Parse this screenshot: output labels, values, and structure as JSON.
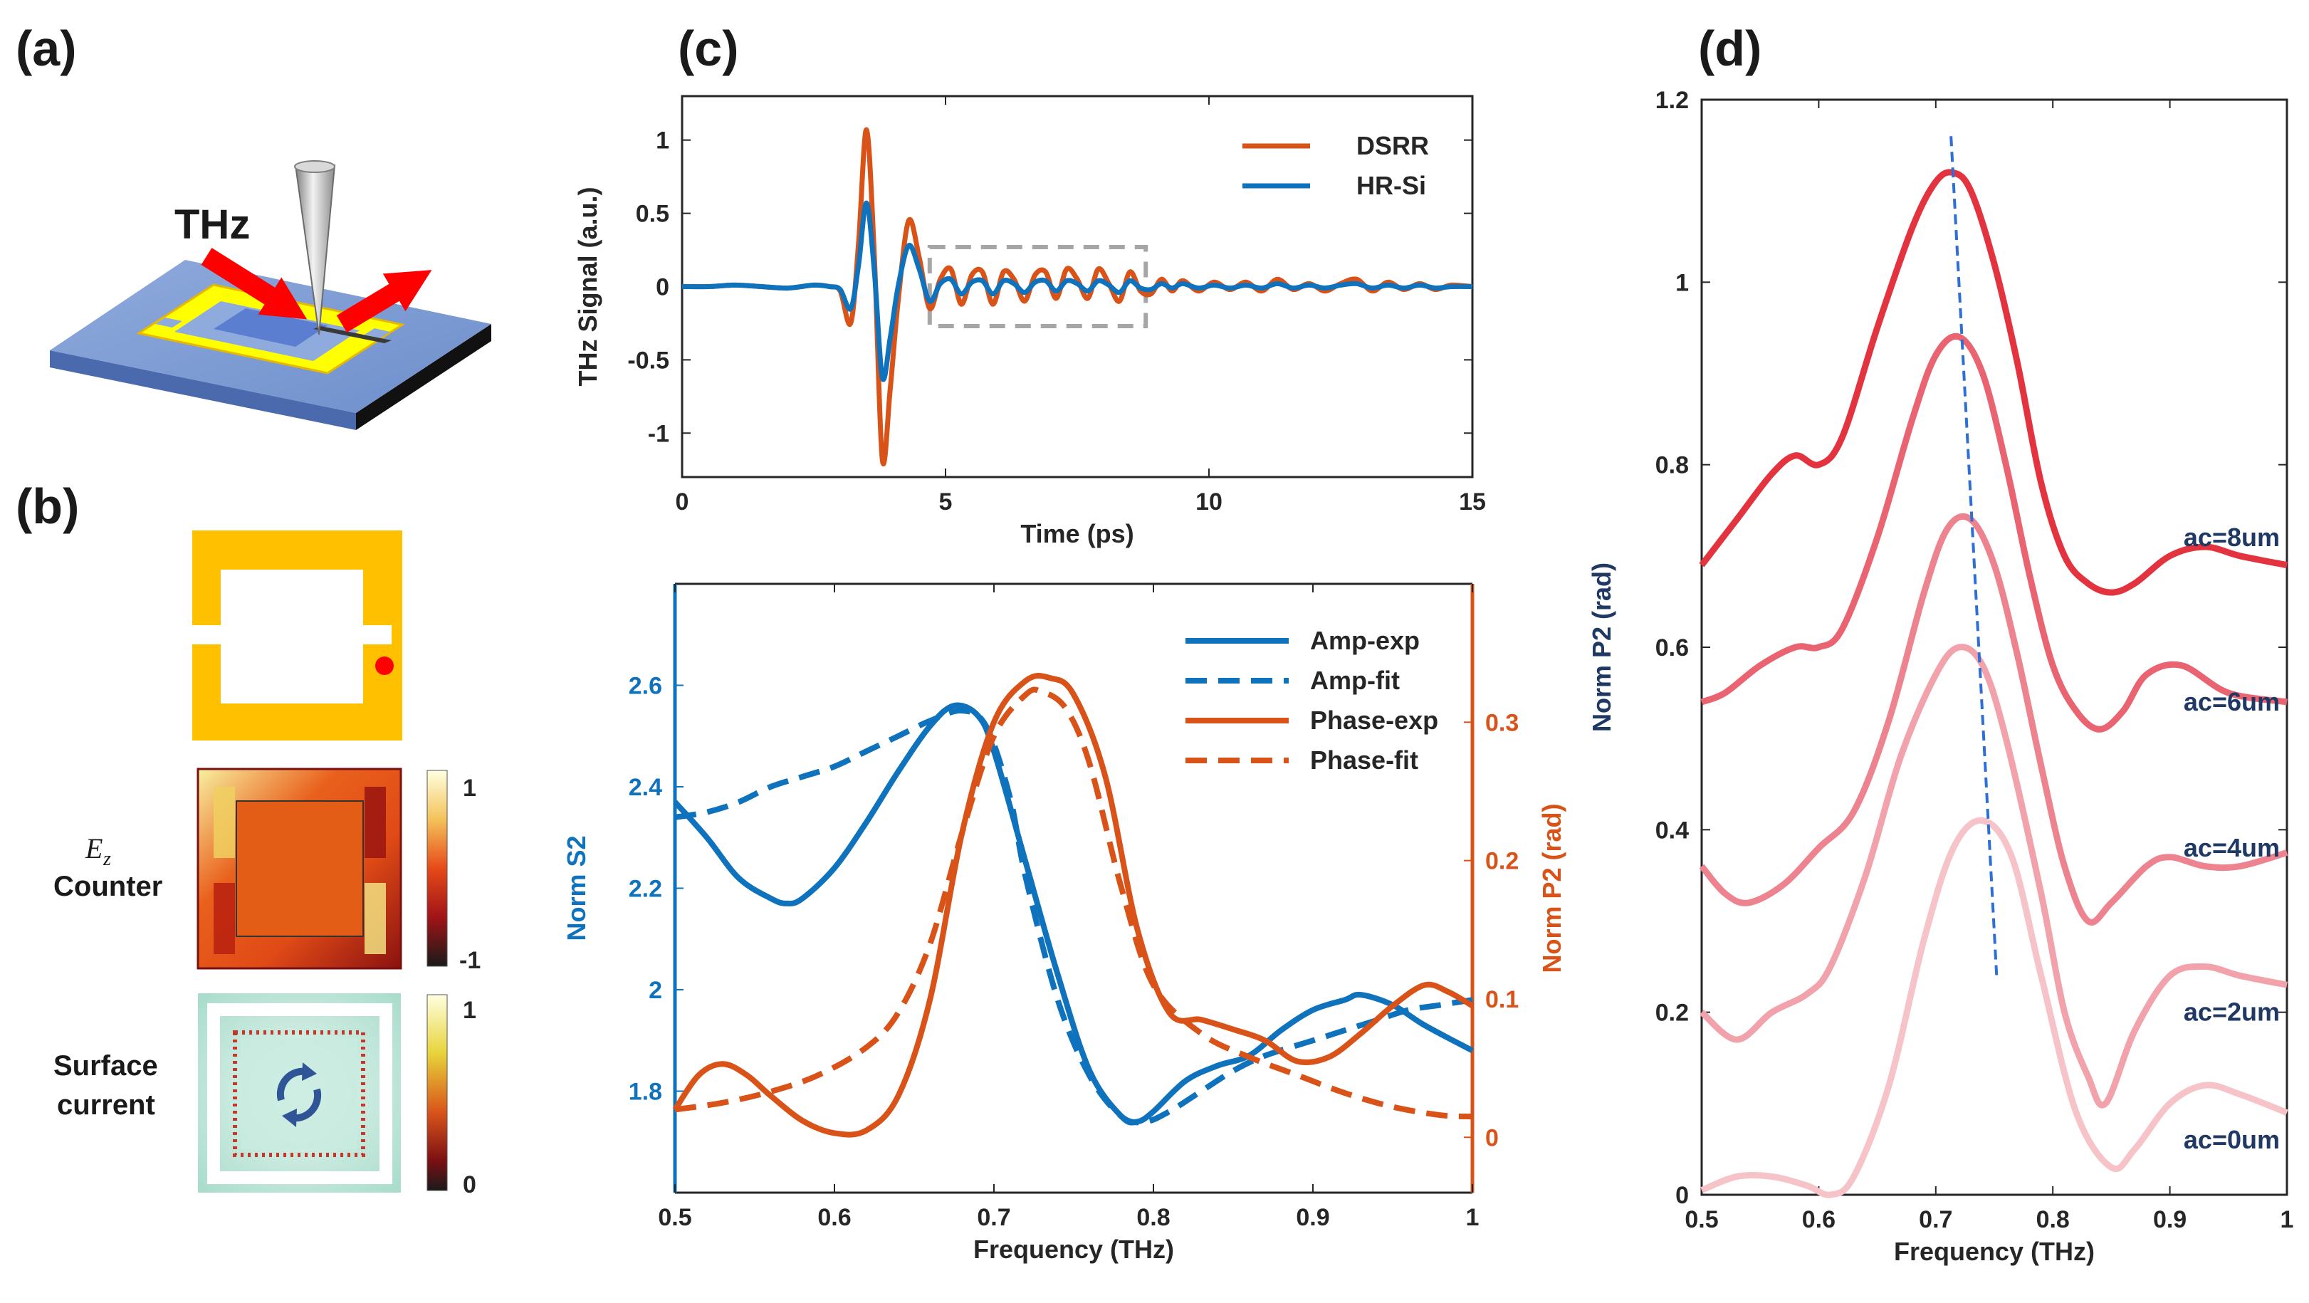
{
  "panels": {
    "a": "(a)",
    "b": "(b)",
    "c": "(c)",
    "d": "(d)"
  },
  "schematic": {
    "thz_label": "THz"
  },
  "field_maps": {
    "ez_symbol": "E",
    "ez_subscript": "z",
    "counter_label": "Counter",
    "surface_label": "Surface",
    "current_label": "current",
    "ez_colorbar_ticks": [
      "1",
      "-1"
    ],
    "current_colorbar_ticks": [
      "1",
      "0"
    ]
  },
  "colors": {
    "blue": "#0f72bd",
    "orange": "#d95319",
    "gold": "#ffc000",
    "dashed_box": "#a6a6a6",
    "d_curves": [
      "#f6c3c8",
      "#f2a2aa",
      "#ed838e",
      "#e96370",
      "#e3333f"
    ],
    "d_labels": "#1f3864"
  },
  "chart_data": [
    {
      "id": "c-top",
      "type": "line",
      "xlabel": "Time (ps)",
      "ylabel": "THz Signal (a.u.)",
      "xlim": [
        0,
        15
      ],
      "ylim": [
        -1.3,
        1.3
      ],
      "xticks": [
        "0",
        "5",
        "10",
        "15"
      ],
      "yticks": [
        "1",
        "0.5",
        "0",
        "-0.5",
        "-1"
      ],
      "legend_position": "top-right",
      "annotation": "dashed box from 4.7 ps to 8.8 ps highlighting post-pulse ringing",
      "series": [
        {
          "name": "DSRR",
          "x": [
            0,
            0.5,
            1,
            1.5,
            2,
            2.5,
            2.8,
            3.0,
            3.2,
            3.35,
            3.5,
            3.65,
            3.8,
            3.95,
            4.1,
            4.3,
            4.5,
            4.7,
            4.9,
            5.1,
            5.3,
            5.5,
            5.7,
            5.9,
            6.1,
            6.3,
            6.5,
            6.7,
            6.9,
            7.1,
            7.3,
            7.5,
            7.7,
            7.9,
            8.1,
            8.3,
            8.5,
            8.7,
            8.9,
            9.1,
            9.3,
            9.5,
            9.8,
            10.1,
            10.4,
            10.7,
            11.0,
            11.3,
            11.6,
            11.9,
            12.2,
            12.5,
            12.8,
            13.1,
            13.4,
            13.7,
            14.0,
            14.3,
            14.6,
            15
          ],
          "values": [
            0,
            0,
            0.01,
            0,
            -0.01,
            0.01,
            0,
            -0.03,
            -0.25,
            0.3,
            1.07,
            0.2,
            -1.18,
            -0.7,
            -0.1,
            0.45,
            0.2,
            -0.15,
            0.05,
            0.12,
            -0.12,
            0.08,
            0.1,
            -0.12,
            0.1,
            0.05,
            -0.1,
            0.08,
            0.1,
            -0.08,
            0.12,
            0.05,
            -0.08,
            0.12,
            0.02,
            -0.1,
            0.1,
            -0.03,
            -0.05,
            0.05,
            -0.03,
            0.04,
            -0.03,
            0.03,
            -0.02,
            0.03,
            -0.03,
            0.05,
            -0.02,
            0.02,
            -0.03,
            0.02,
            0.05,
            -0.03,
            0.03,
            -0.02,
            0.02,
            -0.02,
            0.01,
            0
          ]
        },
        {
          "name": "HR-Si",
          "x": [
            0,
            0.5,
            1,
            1.5,
            2,
            2.5,
            2.8,
            3.0,
            3.2,
            3.35,
            3.5,
            3.65,
            3.8,
            3.95,
            4.1,
            4.3,
            4.5,
            4.7,
            4.9,
            5.1,
            5.3,
            5.5,
            5.7,
            5.9,
            6.1,
            6.3,
            6.5,
            6.7,
            6.9,
            7.1,
            7.3,
            7.5,
            7.7,
            7.9,
            8.1,
            8.3,
            8.5,
            8.7,
            8.9,
            9.1,
            9.3,
            9.5,
            9.8,
            10.1,
            10.4,
            10.7,
            11.0,
            11.3,
            11.6,
            11.9,
            12.2,
            12.5,
            12.8,
            13.1,
            13.4,
            13.7,
            14.0,
            14.3,
            14.6,
            15
          ],
          "values": [
            0,
            0,
            0.01,
            0,
            -0.01,
            0.01,
            0,
            -0.02,
            -0.15,
            0.15,
            0.57,
            0.1,
            -0.62,
            -0.35,
            0.0,
            0.28,
            0.12,
            -0.1,
            0.02,
            0.05,
            -0.05,
            0.03,
            0.04,
            -0.05,
            0.04,
            0.02,
            -0.04,
            0.03,
            0.04,
            -0.03,
            0.04,
            0.02,
            -0.03,
            0.04,
            0.01,
            -0.04,
            0.04,
            -0.01,
            -0.02,
            0.02,
            -0.01,
            0.02,
            -0.01,
            0.01,
            -0.01,
            0.01,
            -0.01,
            0.02,
            -0.01,
            0.01,
            -0.01,
            0.01,
            0.02,
            -0.01,
            0.01,
            -0.01,
            0.01,
            -0.01,
            0,
            0
          ]
        }
      ]
    },
    {
      "id": "c-bottom",
      "type": "line",
      "xlabel": "Frequency (THz)",
      "ylabel_left": "Norm S2",
      "ylabel_right": "Norm P2 (rad)",
      "xlim": [
        0.5,
        1.0
      ],
      "ylim_left": [
        1.6,
        2.8
      ],
      "ylim_right": [
        -0.04,
        0.4
      ],
      "xticks": [
        "0.5",
        "0.6",
        "0.7",
        "0.8",
        "0.9",
        "1"
      ],
      "yticks_left": [
        "1.8",
        "2",
        "2.2",
        "2.4",
        "2.6"
      ],
      "yticks_right": [
        "0",
        "0.1",
        "0.2",
        "0.3"
      ],
      "legend_position": "top-right",
      "series": [
        {
          "name": "Amp-exp",
          "axis": "left",
          "style": "solid",
          "x": [
            0.5,
            0.52,
            0.54,
            0.56,
            0.57,
            0.58,
            0.6,
            0.62,
            0.64,
            0.66,
            0.675,
            0.69,
            0.7,
            0.72,
            0.74,
            0.76,
            0.78,
            0.79,
            0.8,
            0.82,
            0.84,
            0.86,
            0.88,
            0.9,
            0.92,
            0.93,
            0.95,
            0.97,
            1.0
          ],
          "values": [
            2.37,
            2.3,
            2.22,
            2.18,
            2.17,
            2.18,
            2.24,
            2.33,
            2.43,
            2.52,
            2.56,
            2.54,
            2.47,
            2.25,
            2.03,
            1.84,
            1.75,
            1.74,
            1.76,
            1.82,
            1.85,
            1.87,
            1.92,
            1.96,
            1.98,
            1.99,
            1.97,
            1.93,
            1.88
          ]
        },
        {
          "name": "Amp-fit",
          "axis": "left",
          "style": "dashed",
          "x": [
            0.5,
            0.52,
            0.54,
            0.56,
            0.58,
            0.6,
            0.62,
            0.64,
            0.66,
            0.68,
            0.695,
            0.71,
            0.72,
            0.74,
            0.76,
            0.78,
            0.795,
            0.81,
            0.83,
            0.85,
            0.87,
            0.9,
            0.92,
            0.94,
            0.96,
            0.98,
            1.0
          ],
          "values": [
            2.34,
            2.35,
            2.37,
            2.4,
            2.42,
            2.44,
            2.47,
            2.5,
            2.53,
            2.55,
            2.52,
            2.38,
            2.22,
            1.98,
            1.83,
            1.75,
            1.74,
            1.76,
            1.8,
            1.84,
            1.87,
            1.9,
            1.92,
            1.94,
            1.96,
            1.97,
            1.98
          ]
        },
        {
          "name": "Phase-exp",
          "axis": "right",
          "style": "solid",
          "x": [
            0.5,
            0.515,
            0.53,
            0.545,
            0.56,
            0.58,
            0.6,
            0.62,
            0.64,
            0.66,
            0.68,
            0.7,
            0.72,
            0.735,
            0.75,
            0.77,
            0.79,
            0.81,
            0.83,
            0.85,
            0.87,
            0.89,
            0.91,
            0.93,
            0.95,
            0.97,
            0.985,
            1.0
          ],
          "values": [
            0.02,
            0.045,
            0.053,
            0.045,
            0.03,
            0.012,
            0.003,
            0.005,
            0.03,
            0.1,
            0.22,
            0.3,
            0.33,
            0.332,
            0.32,
            0.26,
            0.15,
            0.09,
            0.085,
            0.078,
            0.07,
            0.055,
            0.058,
            0.075,
            0.095,
            0.11,
            0.105,
            0.095
          ]
        },
        {
          "name": "Phase-fit",
          "axis": "right",
          "style": "dashed",
          "x": [
            0.5,
            0.53,
            0.56,
            0.59,
            0.62,
            0.64,
            0.66,
            0.68,
            0.7,
            0.72,
            0.73,
            0.745,
            0.76,
            0.78,
            0.8,
            0.83,
            0.86,
            0.89,
            0.92,
            0.95,
            0.98,
            1.0
          ],
          "values": [
            0.02,
            0.025,
            0.033,
            0.045,
            0.065,
            0.09,
            0.14,
            0.22,
            0.29,
            0.32,
            0.322,
            0.31,
            0.27,
            0.18,
            0.11,
            0.075,
            0.058,
            0.045,
            0.032,
            0.022,
            0.016,
            0.015
          ]
        }
      ]
    },
    {
      "id": "d",
      "type": "line",
      "xlabel": "Frequency (THz)",
      "ylabel": "Norm P2 (rad)",
      "xlim": [
        0.5,
        1.0
      ],
      "ylim": [
        0,
        1.2
      ],
      "xticks": [
        "0.5",
        "0.6",
        "0.7",
        "0.8",
        "0.9",
        "1"
      ],
      "yticks": [
        "0",
        "0.2",
        "0.4",
        "0.6",
        "0.8",
        "1",
        "1.2"
      ],
      "annotation": "dashed guide line tracking peak shift from (0.713, 1.16) to (0.752, 0.24)",
      "series": [
        {
          "name": "ac=0um",
          "x": [
            0.5,
            0.53,
            0.56,
            0.59,
            0.61,
            0.63,
            0.66,
            0.69,
            0.715,
            0.74,
            0.765,
            0.79,
            0.82,
            0.85,
            0.87,
            0.9,
            0.93,
            0.96,
            1.0
          ],
          "values": [
            0.005,
            0.02,
            0.02,
            0.01,
            0.0,
            0.02,
            0.12,
            0.28,
            0.38,
            0.41,
            0.37,
            0.24,
            0.09,
            0.03,
            0.05,
            0.1,
            0.12,
            0.11,
            0.09
          ]
        },
        {
          "name": "ac=2um",
          "x": [
            0.5,
            0.53,
            0.56,
            0.59,
            0.61,
            0.64,
            0.67,
            0.7,
            0.72,
            0.74,
            0.76,
            0.79,
            0.81,
            0.83,
            0.845,
            0.87,
            0.9,
            0.93,
            0.96,
            1.0
          ],
          "values": [
            0.2,
            0.17,
            0.2,
            0.22,
            0.25,
            0.35,
            0.48,
            0.57,
            0.6,
            0.58,
            0.5,
            0.33,
            0.2,
            0.13,
            0.1,
            0.18,
            0.24,
            0.25,
            0.24,
            0.23
          ]
        },
        {
          "name": "ac=4um",
          "x": [
            0.5,
            0.52,
            0.54,
            0.57,
            0.6,
            0.63,
            0.66,
            0.69,
            0.71,
            0.73,
            0.75,
            0.77,
            0.79,
            0.81,
            0.83,
            0.85,
            0.88,
            0.9,
            0.93,
            0.96,
            1.0
          ],
          "values": [
            0.36,
            0.33,
            0.32,
            0.34,
            0.38,
            0.42,
            0.52,
            0.66,
            0.73,
            0.74,
            0.69,
            0.59,
            0.47,
            0.36,
            0.3,
            0.32,
            0.36,
            0.37,
            0.36,
            0.36,
            0.375
          ]
        },
        {
          "name": "ac=6um",
          "x": [
            0.5,
            0.52,
            0.55,
            0.58,
            0.6,
            0.62,
            0.65,
            0.68,
            0.7,
            0.72,
            0.74,
            0.76,
            0.78,
            0.8,
            0.82,
            0.84,
            0.86,
            0.88,
            0.91,
            0.95,
            1.0
          ],
          "values": [
            0.54,
            0.55,
            0.58,
            0.6,
            0.6,
            0.62,
            0.72,
            0.85,
            0.92,
            0.94,
            0.9,
            0.8,
            0.68,
            0.58,
            0.53,
            0.51,
            0.53,
            0.57,
            0.58,
            0.55,
            0.54
          ]
        },
        {
          "name": "ac=8um",
          "x": [
            0.5,
            0.53,
            0.56,
            0.58,
            0.6,
            0.62,
            0.65,
            0.68,
            0.7,
            0.715,
            0.73,
            0.75,
            0.77,
            0.79,
            0.81,
            0.83,
            0.85,
            0.87,
            0.9,
            0.93,
            0.96,
            1.0
          ],
          "values": [
            0.69,
            0.74,
            0.79,
            0.81,
            0.8,
            0.83,
            0.95,
            1.06,
            1.11,
            1.12,
            1.1,
            1.02,
            0.91,
            0.78,
            0.7,
            0.67,
            0.66,
            0.67,
            0.7,
            0.71,
            0.7,
            0.69
          ]
        }
      ]
    }
  ]
}
